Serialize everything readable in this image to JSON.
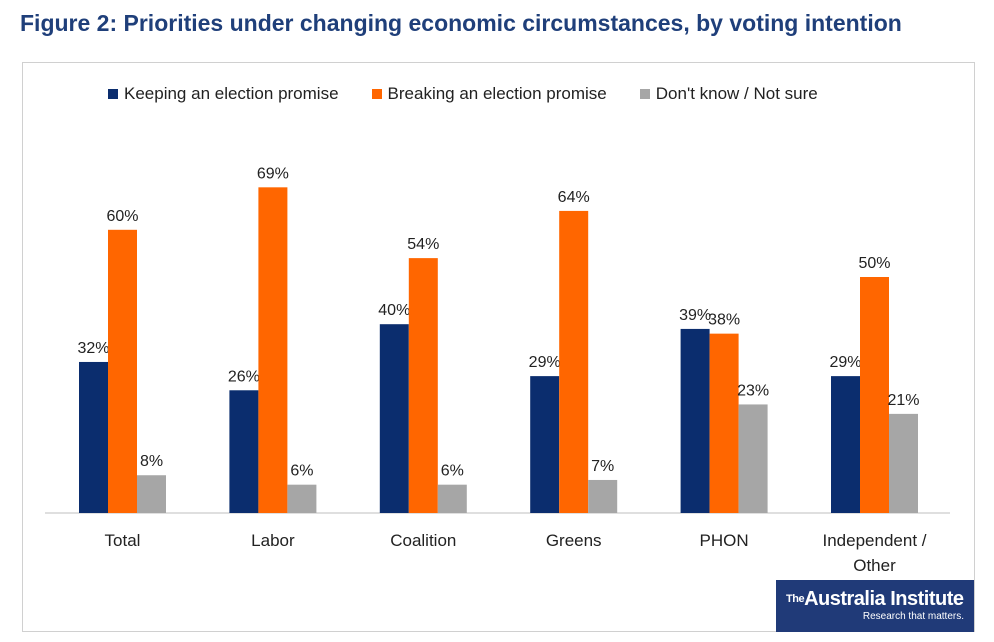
{
  "figure": {
    "title": "Figure 2: Priorities under changing economic circumstances, by voting intention"
  },
  "logo": {
    "prefix": "The",
    "name": "Australia Institute",
    "tagline": "Research that matters."
  },
  "colors": {
    "keeping": "#0b2d6e",
    "breaking": "#ff6600",
    "dontknow": "#a6a6a6",
    "title": "#1f3f7a"
  },
  "chart_data": {
    "type": "bar",
    "categories": [
      "Total",
      "Labor",
      "Coalition",
      "Greens",
      "PHON",
      "Independent / Other"
    ],
    "series": [
      {
        "name": "Keeping an election promise",
        "values": [
          32,
          26,
          40,
          29,
          39,
          29
        ]
      },
      {
        "name": "Breaking an election promise",
        "values": [
          60,
          69,
          54,
          64,
          38,
          50
        ]
      },
      {
        "name": "Don't know / Not sure",
        "values": [
          8,
          6,
          6,
          7,
          23,
          21
        ]
      }
    ],
    "value_suffix": "%",
    "legend_position": "top",
    "grid": false,
    "ylim": [
      0,
      69
    ]
  }
}
